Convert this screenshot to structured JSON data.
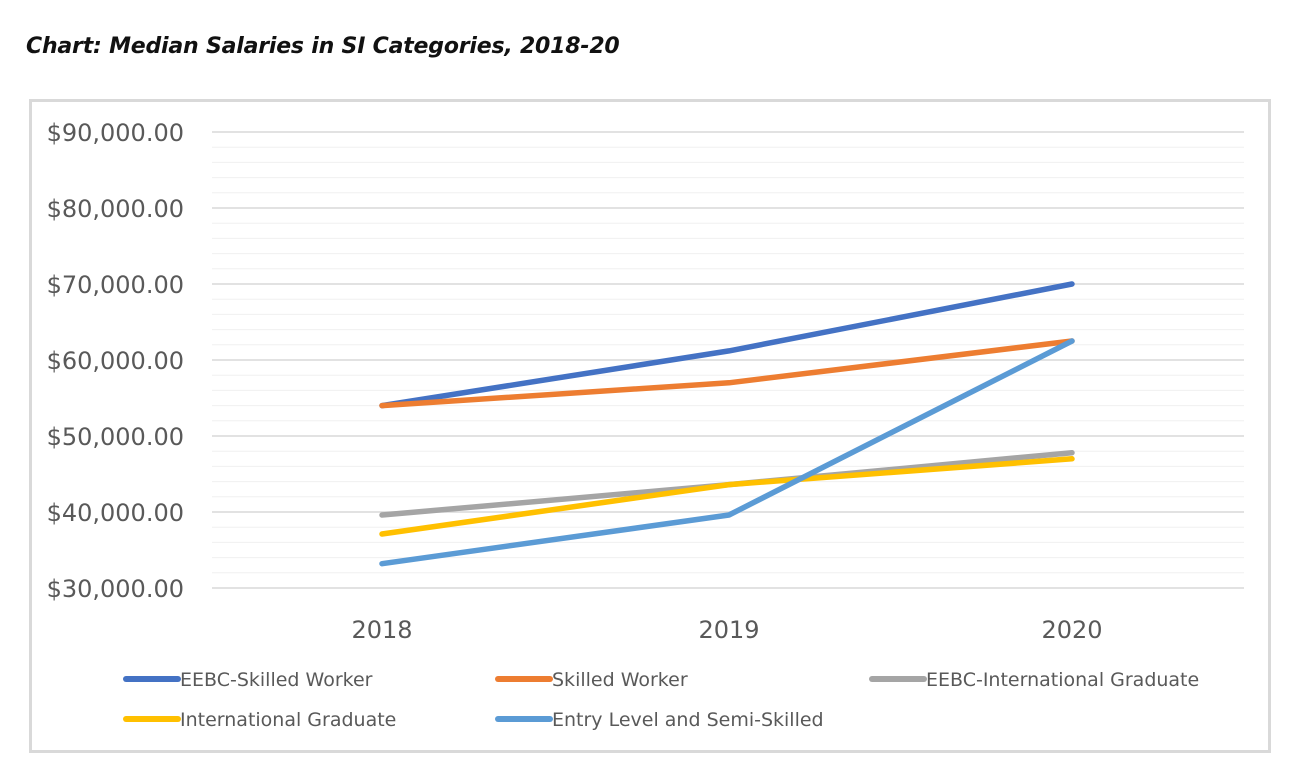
{
  "title": "Chart: Median Salaries in SI Categories, 2018-20",
  "chart_data": {
    "type": "line",
    "title": "",
    "xlabel": "",
    "ylabel": "",
    "x": [
      "2018",
      "2019",
      "2020"
    ],
    "ylim": [
      30000,
      90000
    ],
    "y_major_ticks": [
      30000,
      40000,
      50000,
      60000,
      70000,
      80000,
      90000
    ],
    "y_tick_labels": [
      "$30,000.00",
      "$40,000.00",
      "$50,000.00",
      "$60,000.00",
      "$70,000.00",
      "$80,000.00",
      "$90,000.00"
    ],
    "minor_grid_step": 2000,
    "grid": true,
    "legend_position": "bottom",
    "series": [
      {
        "name": "EEBC-Skilled Worker",
        "color": "#4472c4",
        "values": [
          54000,
          61200,
          70000
        ]
      },
      {
        "name": "Skilled Worker",
        "color": "#ed7d31",
        "values": [
          54000,
          57000,
          62500
        ]
      },
      {
        "name": "EEBC-International Graduate",
        "color": "#a5a5a5",
        "values": [
          39600,
          43600,
          47800
        ]
      },
      {
        "name": "International Graduate",
        "color": "#ffc000",
        "values": [
          37100,
          43600,
          47000
        ]
      },
      {
        "name": "Entry Level and Semi-Skilled",
        "color": "#5b9bd5",
        "values": [
          33200,
          39600,
          62500
        ]
      }
    ]
  }
}
